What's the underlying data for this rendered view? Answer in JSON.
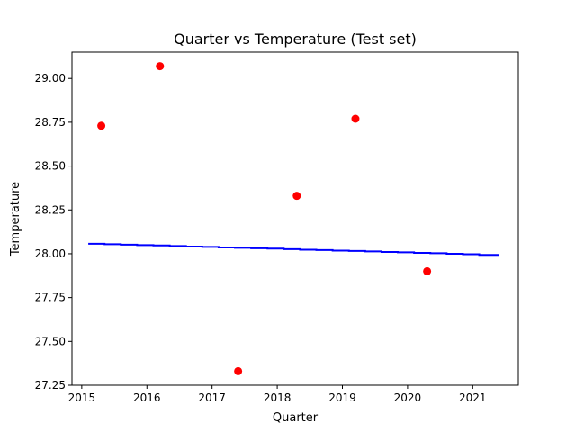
{
  "chart_data": {
    "type": "scatter",
    "title": "Quarter vs Temperature (Test set)",
    "xlabel": "Quarter",
    "ylabel": "Temperature",
    "xlim": [
      2014.85,
      2021.7
    ],
    "ylim": [
      27.25,
      29.15
    ],
    "xticks": [
      2015,
      2016,
      2017,
      2018,
      2019,
      2020,
      2021
    ],
    "xtick_labels": [
      "2015",
      "2016",
      "2017",
      "2018",
      "2019",
      "2020",
      "2021"
    ],
    "yticks": [
      27.25,
      27.5,
      27.75,
      28.0,
      28.25,
      28.5,
      28.75,
      29.0
    ],
    "ytick_labels": [
      "27.25",
      "27.50",
      "27.75",
      "28.00",
      "28.25",
      "28.50",
      "28.75",
      "29.00"
    ],
    "grid": false,
    "points": {
      "color": "#ff0000",
      "x": [
        2015.3,
        2016.2,
        2017.4,
        2018.3,
        2019.2,
        2020.3
      ],
      "y": [
        28.73,
        29.07,
        27.33,
        28.33,
        28.77,
        27.9
      ]
    },
    "fit_line": {
      "color": "#0000ff",
      "x": [
        2015.1,
        2015.35,
        2015.35,
        2015.6,
        2015.6,
        2015.85,
        2015.85,
        2016.1,
        2016.1,
        2016.35,
        2016.35,
        2016.6,
        2016.6,
        2016.85,
        2016.85,
        2017.1,
        2017.1,
        2017.35,
        2017.35,
        2017.6,
        2017.6,
        2017.85,
        2017.85,
        2018.1,
        2018.1,
        2018.35,
        2018.35,
        2018.6,
        2018.6,
        2018.85,
        2018.85,
        2019.1,
        2019.1,
        2019.35,
        2019.35,
        2019.6,
        2019.6,
        2019.85,
        2019.85,
        2020.1,
        2020.1,
        2020.35,
        2020.35,
        2020.6,
        2020.6,
        2020.85,
        2020.85,
        2021.1,
        2021.1,
        2021.4
      ],
      "y": [
        28.057,
        28.057,
        28.054,
        28.054,
        28.052,
        28.052,
        28.049,
        28.049,
        28.047,
        28.047,
        28.044,
        28.044,
        28.041,
        28.041,
        28.039,
        28.039,
        28.036,
        28.036,
        28.034,
        28.034,
        28.031,
        28.031,
        28.029,
        28.029,
        28.026,
        28.026,
        28.023,
        28.023,
        28.021,
        28.021,
        28.018,
        28.018,
        28.016,
        28.016,
        28.013,
        28.013,
        28.01,
        28.01,
        28.008,
        28.008,
        28.005,
        28.005,
        28.003,
        28.003,
        28.0,
        28.0,
        27.997,
        27.997,
        27.993,
        27.993
      ]
    }
  }
}
